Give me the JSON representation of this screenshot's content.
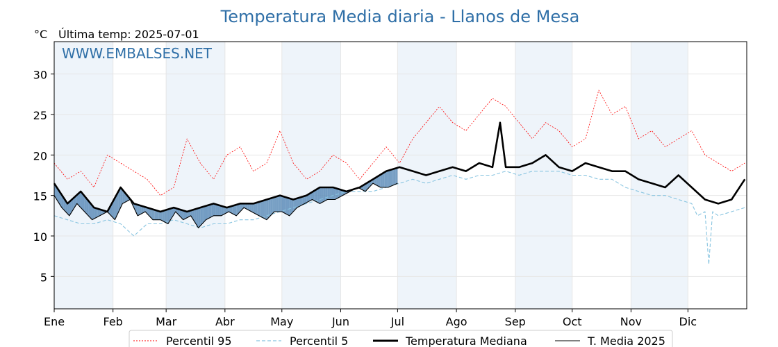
{
  "chart_data": {
    "type": "line",
    "title": "Temperatura Media diaria - Llanos de Mesa",
    "unit_label": "°C",
    "last_temp_label": "Última temp: 2025-07-01",
    "watermark": "WWW.EMBALSES.NET",
    "x_tick_labels": [
      "Ene",
      "Feb",
      "Mar",
      "Abr",
      "May",
      "Jun",
      "Jul",
      "Ago",
      "Sep",
      "Oct",
      "Nov",
      "Dic"
    ],
    "y_ticks": [
      5,
      10,
      15,
      20,
      25,
      30
    ],
    "ylim": [
      1,
      34
    ],
    "xlim_days": [
      1,
      366
    ],
    "grid": true,
    "legend_position": "bottom-center",
    "colors": {
      "p95": "#ff0000",
      "p5": "#87c4e0",
      "median": "#000000",
      "year2025": "#000000",
      "above_fill": "#e8a3a3",
      "below_fill": "#4a7fb0",
      "band": "#eef4fa",
      "title": "#2f6fa7"
    },
    "series": [
      {
        "name": "Percentil 95",
        "style": "dotted",
        "x_day": [
          1,
          8,
          15,
          22,
          29,
          36,
          43,
          50,
          57,
          64,
          71,
          78,
          85,
          92,
          99,
          106,
          113,
          120,
          127,
          134,
          141,
          148,
          155,
          162,
          169,
          176,
          183,
          190,
          197,
          204,
          211,
          218,
          225,
          232,
          239,
          246,
          253,
          260,
          267,
          274,
          281,
          288,
          295,
          302,
          309,
          316,
          323,
          330,
          337,
          344,
          351,
          358,
          365
        ],
        "values": [
          19,
          17,
          18,
          16,
          20,
          19,
          18,
          17,
          15,
          16,
          22,
          19,
          17,
          20,
          21,
          18,
          19,
          23,
          19,
          17,
          18,
          20,
          19,
          17,
          19,
          21,
          19,
          22,
          24,
          26,
          24,
          23,
          25,
          27,
          26,
          24,
          22,
          24,
          23,
          21,
          22,
          28,
          25,
          26,
          22,
          23,
          21,
          22,
          23,
          20,
          19,
          18,
          19
        ]
      },
      {
        "name": "Percentil 5",
        "style": "dashed",
        "x_day": [
          1,
          8,
          15,
          22,
          29,
          36,
          43,
          50,
          57,
          64,
          71,
          78,
          85,
          92,
          99,
          106,
          113,
          120,
          127,
          134,
          141,
          148,
          155,
          162,
          169,
          176,
          183,
          190,
          197,
          204,
          211,
          218,
          225,
          232,
          239,
          246,
          253,
          260,
          267,
          274,
          281,
          288,
          295,
          302,
          309,
          316,
          323,
          330,
          337,
          340,
          344,
          346,
          348,
          351,
          358,
          365
        ],
        "values": [
          12.5,
          12,
          11.5,
          11.5,
          12,
          11.5,
          10,
          11.5,
          11.5,
          12,
          11.5,
          11,
          11.5,
          11.5,
          12,
          12,
          12.5,
          13,
          13.5,
          14,
          14.5,
          15,
          15.5,
          15.5,
          15.5,
          16,
          16.5,
          17,
          16.5,
          17,
          17.5,
          17,
          17.5,
          17.5,
          18,
          17.5,
          18,
          18,
          18,
          17.5,
          17.5,
          17,
          17,
          16,
          15.5,
          15,
          15,
          14.5,
          14,
          12.5,
          13,
          6.5,
          13,
          12.5,
          13,
          13.5
        ]
      },
      {
        "name": "Temperatura Mediana",
        "style": "solid-thick",
        "x_day": [
          1,
          8,
          15,
          22,
          29,
          36,
          43,
          50,
          57,
          64,
          71,
          78,
          85,
          92,
          99,
          106,
          113,
          120,
          127,
          134,
          141,
          148,
          155,
          162,
          169,
          176,
          183,
          190,
          197,
          204,
          211,
          218,
          225,
          232,
          236,
          239,
          246,
          253,
          260,
          267,
          274,
          281,
          288,
          295,
          302,
          309,
          316,
          323,
          330,
          337,
          344,
          351,
          358,
          365
        ],
        "values": [
          16.5,
          14,
          15.5,
          13.5,
          13,
          16,
          14,
          13.5,
          13,
          13.5,
          13,
          13.5,
          14,
          13.5,
          14,
          14,
          14.5,
          15,
          14.5,
          15,
          16,
          16,
          15.5,
          16,
          17,
          18,
          18.5,
          18,
          17.5,
          18,
          18.5,
          18,
          19,
          18.5,
          24,
          18.5,
          18.5,
          19,
          20,
          18.5,
          18,
          19,
          18.5,
          18,
          18,
          17,
          16.5,
          16,
          17.5,
          16,
          14.5,
          14,
          14.5,
          17
        ]
      },
      {
        "name": "T. Media 2025",
        "style": "solid-thin",
        "x_day": [
          1,
          5,
          9,
          13,
          17,
          21,
          25,
          29,
          33,
          37,
          41,
          45,
          49,
          53,
          57,
          61,
          65,
          69,
          73,
          77,
          81,
          85,
          89,
          93,
          97,
          101,
          105,
          109,
          113,
          117,
          121,
          125,
          129,
          133,
          137,
          141,
          145,
          149,
          153,
          157,
          161,
          165,
          169,
          173,
          177,
          182
        ],
        "values": [
          15,
          13.5,
          12.5,
          14,
          13,
          12,
          12.5,
          13,
          12,
          14,
          14.5,
          12.5,
          13,
          12,
          12,
          11.5,
          13,
          12,
          12.5,
          11,
          12,
          12.5,
          12.5,
          13,
          12.5,
          13.5,
          13,
          12.5,
          12,
          13,
          13,
          12.5,
          13.5,
          14,
          14.5,
          14,
          14.5,
          14.5,
          15,
          15.5,
          16,
          15.5,
          16.5,
          16,
          16,
          16.5
        ]
      }
    ],
    "legend": [
      "Percentil 95",
      "Percentil 5",
      "Temperatura Mediana",
      "T. Media 2025"
    ]
  }
}
